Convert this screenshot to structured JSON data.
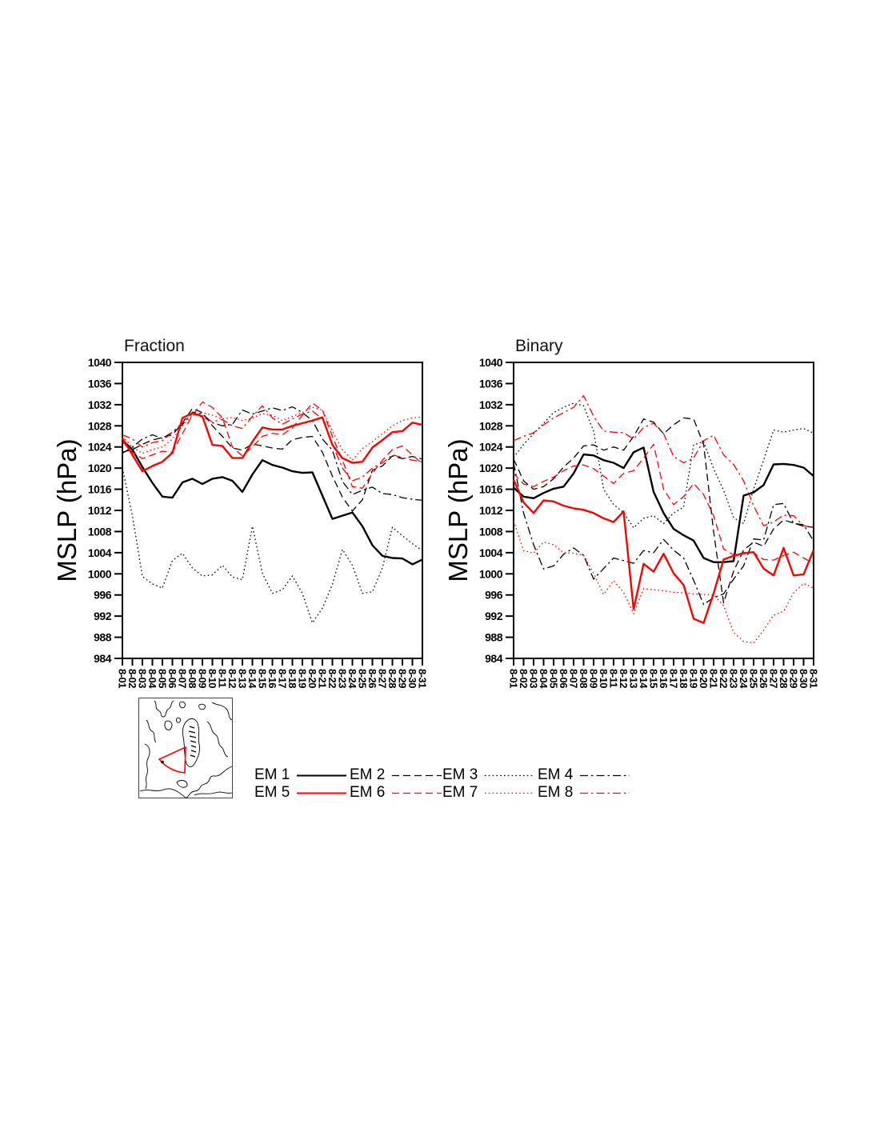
{
  "page": {
    "background": "#ffffff"
  },
  "axes": {
    "ylabel": "MSLP (hPa)",
    "ylim": [
      984,
      1040
    ],
    "ytick_step": 4
  },
  "chart_data": [
    {
      "type": "line",
      "title": "Fraction",
      "ylabel": "MSLP (hPa)",
      "ylim": [
        984,
        1040
      ],
      "yticks": [
        1040,
        1036,
        1032,
        1028,
        1024,
        1020,
        1016,
        1012,
        1008,
        1004,
        1000,
        996,
        992,
        988,
        984
      ],
      "x": [
        "8-01",
        "8-02",
        "8-03",
        "8-04",
        "8-05",
        "8-06",
        "8-07",
        "8-08",
        "8-09",
        "8-10",
        "8-11",
        "8-12",
        "8-13",
        "8-14",
        "8-15",
        "8-16",
        "8-17",
        "8-18",
        "8-19",
        "8-20",
        "8-21",
        "8-22",
        "8-23",
        "8-24",
        "8-25",
        "8-26",
        "8-27",
        "8-28",
        "8-29",
        "8-30",
        "8-31"
      ],
      "grid": false,
      "series": [
        {
          "name": "EM 1",
          "color": "#000000",
          "style": "solid",
          "width": 2.4,
          "values": [
            1025.3,
            1023.5,
            1020.2,
            1017.2,
            1014.6,
            1014.4,
            1017.3,
            1018,
            1017,
            1018,
            1018.3,
            1017.6,
            1015.5,
            1018.8,
            1021.5,
            1020.6,
            1020.1,
            1019.4,
            1019.1,
            1019.2,
            1014.8,
            1010.4,
            1011,
            1011.6,
            1009,
            1005.4,
            1003.4,
            1003,
            1002.9,
            1001.8,
            1002.7
          ]
        },
        {
          "name": "EM 2",
          "color": "#000000",
          "style": "dash",
          "width": 1.3,
          "values": [
            1023,
            1023.5,
            1024.5,
            1025.3,
            1025.8,
            1026.3,
            1028.5,
            1031.3,
            1030.5,
            1028,
            1026,
            1023.8,
            1023.4,
            1024.6,
            1024.2,
            1023.8,
            1023.6,
            1025.4,
            1025.8,
            1026,
            1023,
            1018.5,
            1014.5,
            1011.9,
            1014,
            1019.6,
            1020.4,
            1022.3,
            1021.8,
            1022.2,
            1021.7
          ]
        },
        {
          "name": "EM 3",
          "color": "#000000",
          "style": "dot",
          "width": 1.3,
          "values": [
            1020,
            1011,
            999.5,
            998.1,
            997.3,
            1002.5,
            1003.9,
            1001.1,
            999.6,
            999.8,
            1001.6,
            999.4,
            998.9,
            1009,
            1000.1,
            996.3,
            997,
            999.6,
            996.3,
            990.7,
            993.5,
            998,
            1004.6,
            1001.6,
            996.3,
            996.6,
            1001.1,
            1008.8,
            1007.2,
            1005.7,
            1004.4
          ]
        },
        {
          "name": "EM 4",
          "color": "#000000",
          "style": "dashdot",
          "width": 1.3,
          "values": [
            1022.8,
            1024,
            1025.5,
            1026.3,
            1025.6,
            1026.8,
            1028.2,
            1030.6,
            1030.2,
            1028.6,
            1028,
            1028.3,
            1031,
            1030.2,
            1030.8,
            1031.4,
            1030.9,
            1031.6,
            1030.5,
            1029,
            1025.5,
            1023.4,
            1017.5,
            1015,
            1015.8,
            1016.4,
            1015.2,
            1015,
            1014.4,
            1014.1,
            1013.9
          ]
        },
        {
          "name": "EM 5",
          "color": "#ff0000",
          "style": "solid",
          "width": 2.4,
          "values": [
            1025.7,
            1022.5,
            1019.4,
            1020.4,
            1021.2,
            1022.9,
            1029.5,
            1030.4,
            1029.8,
            1024.4,
            1024.2,
            1021.9,
            1021.9,
            1025,
            1027.7,
            1027.3,
            1027.3,
            1028,
            1028.5,
            1029,
            1029.6,
            1024.4,
            1021.9,
            1021,
            1021.2,
            1023.9,
            1025.3,
            1026.8,
            1027,
            1028.6,
            1028.2
          ]
        },
        {
          "name": "EM 6",
          "color": "#ff0000",
          "style": "dash",
          "width": 1.3,
          "values": [
            1025,
            1023,
            1021.8,
            1022.5,
            1023.2,
            1023,
            1026.5,
            1030,
            1032.5,
            1031.5,
            1029.5,
            1024,
            1022.3,
            1024,
            1026,
            1026.6,
            1026.3,
            1027.6,
            1030,
            1032.3,
            1031,
            1026,
            1021.5,
            1016.5,
            1016.2,
            1019,
            1021.5,
            1023.5,
            1024.2,
            1022.5,
            1020.8
          ]
        },
        {
          "name": "EM 7",
          "color": "#ff0000",
          "style": "dot",
          "width": 1.3,
          "values": [
            1026,
            1024,
            1022.8,
            1023.5,
            1024,
            1025.5,
            1028,
            1030,
            1030.5,
            1030,
            1029.3,
            1029.6,
            1029,
            1029.5,
            1030.3,
            1030,
            1029,
            1029.8,
            1030.5,
            1031.5,
            1031,
            1027,
            1023.5,
            1021.5,
            1023.7,
            1025,
            1026.5,
            1028,
            1029,
            1029.5,
            1029.7
          ]
        },
        {
          "name": "EM 8",
          "color": "#ff0000",
          "style": "dashdot",
          "width": 1.3,
          "values": [
            1026.3,
            1025.5,
            1024,
            1024.8,
            1025.2,
            1026.8,
            1028.6,
            1030.3,
            1029.6,
            1028.8,
            1029.2,
            1028,
            1027.5,
            1029.8,
            1031.8,
            1029.5,
            1028.3,
            1029.3,
            1030.2,
            1030.8,
            1029.3,
            1024.5,
            1020,
            1017.6,
            1018.3,
            1020,
            1021,
            1022.5,
            1022,
            1021.5,
            1021.2
          ]
        }
      ]
    },
    {
      "type": "line",
      "title": "Binary",
      "ylabel": "MSLP (hPa)",
      "ylim": [
        984,
        1040
      ],
      "yticks": [
        1040,
        1036,
        1032,
        1028,
        1024,
        1020,
        1016,
        1012,
        1008,
        1004,
        1000,
        996,
        992,
        988,
        984
      ],
      "x": [
        "8-01",
        "8-02",
        "8-03",
        "8-04",
        "8-05",
        "8-06",
        "8-07",
        "8-08",
        "8-09",
        "8-10",
        "8-11",
        "8-12",
        "8-13",
        "8-14",
        "8-15",
        "8-16",
        "8-17",
        "8-18",
        "8-19",
        "8-20",
        "8-21",
        "8-22",
        "8-23",
        "8-24",
        "8-25",
        "8-26",
        "8-27",
        "8-28",
        "8-29",
        "8-30",
        "8-31"
      ],
      "grid": false,
      "series": [
        {
          "name": "EM 1",
          "color": "#000000",
          "style": "solid",
          "width": 2.4,
          "values": [
            1016.3,
            1014.6,
            1014.3,
            1015.3,
            1016.1,
            1016.5,
            1019,
            1022.6,
            1022.4,
            1021.5,
            1021,
            1020,
            1023,
            1023.9,
            1015.5,
            1011.5,
            1008.5,
            1007.3,
            1006.3,
            1003,
            1002.2,
            1002.2,
            1002.4,
            1014.8,
            1015.4,
            1016.8,
            1020.7,
            1020.8,
            1020.6,
            1020.1,
            1018.5
          ]
        },
        {
          "name": "EM 2",
          "color": "#000000",
          "style": "dash",
          "width": 1.3,
          "values": [
            1021.7,
            1017.6,
            1016,
            1016.5,
            1018,
            1020.2,
            1021.9,
            1024.2,
            1024.4,
            1023.4,
            1024,
            1023.4,
            1026,
            1029.3,
            1028.7,
            1026.5,
            1028.2,
            1029.5,
            1029.3,
            1024.5,
            1008,
            994.5,
            1000.5,
            1004.5,
            1006,
            1005.2,
            1008.5,
            1010.2,
            1009.6,
            1009,
            1008.8
          ]
        },
        {
          "name": "EM 3",
          "color": "#000000",
          "style": "dot",
          "width": 1.3,
          "values": [
            1022,
            1024.5,
            1026.5,
            1028.5,
            1030.5,
            1031.5,
            1032.3,
            1031.8,
            1027,
            1016,
            1013.1,
            1011.6,
            1008.7,
            1010.5,
            1011,
            1009.5,
            1011.5,
            1012.6,
            1024.4,
            1025,
            1019.9,
            1015.8,
            1010.6,
            1009.5,
            1016,
            1021.5,
            1027.2,
            1026.8,
            1027.2,
            1027.5,
            1026.6
          ]
        },
        {
          "name": "EM 4",
          "color": "#000000",
          "style": "dashdot",
          "width": 1.3,
          "values": [
            1021,
            1011.5,
            1005.5,
            1000.9,
            1001.5,
            1003.7,
            1004.9,
            1003.5,
            999,
            1001,
            1003,
            1002.5,
            1002,
            1004.4,
            1004,
            1006.5,
            1004.5,
            1003,
            998.8,
            994.2,
            995.5,
            996.2,
            999,
            1001.5,
            1006.6,
            1006.4,
            1013.1,
            1013.3,
            1009.5,
            1009.3,
            1006.2
          ]
        },
        {
          "name": "EM 5",
          "color": "#ff0000",
          "style": "solid",
          "width": 2.4,
          "values": [
            1017.8,
            1013.5,
            1011.5,
            1013.9,
            1013.7,
            1012.9,
            1012.4,
            1012.1,
            1011.5,
            1010.5,
            1009.8,
            1011.8,
            993.3,
            1001.9,
            1000.4,
            1003.8,
            1000.1,
            997.9,
            991.5,
            990.7,
            996.3,
            1002.7,
            1003.4,
            1003.9,
            1004.1,
            1001,
            999.7,
            1004.9,
            999.7,
            999.9,
            1004.5
          ]
        },
        {
          "name": "EM 6",
          "color": "#ff0000",
          "style": "dash",
          "width": 1.3,
          "values": [
            1019,
            1017,
            1016.5,
            1017.5,
            1018.3,
            1019.5,
            1020.4,
            1020.6,
            1019.9,
            1018.5,
            1017.1,
            1019,
            1019.5,
            1021.9,
            1024.5,
            1016,
            1013.1,
            1014.6,
            1017.1,
            1015,
            1011,
            1004.7,
            1003.6,
            1004,
            1004,
            1002.7,
            1002.6,
            1003.5,
            1004.1,
            1003,
            1002
          ]
        },
        {
          "name": "EM 7",
          "color": "#ff0000",
          "style": "dot",
          "width": 1.3,
          "values": [
            1010,
            1004.4,
            1003.9,
            1006,
            1005.5,
            1004,
            1003.9,
            1003.5,
            1000.1,
            996.1,
            998.7,
            996.5,
            992.4,
            997.2,
            997,
            996.8,
            996.5,
            996.4,
            996.2,
            996.1,
            996,
            994,
            988.9,
            987.2,
            986.9,
            989.3,
            992.2,
            992.9,
            996.4,
            998.2,
            997.3
          ]
        },
        {
          "name": "EM 8",
          "color": "#ff0000",
          "style": "dashdot",
          "width": 1.3,
          "values": [
            1025.2,
            1026,
            1026.7,
            1028.2,
            1029.5,
            1030.5,
            1031.5,
            1033.7,
            1029.8,
            1027,
            1026.8,
            1026.7,
            1025.5,
            1027.7,
            1028.5,
            1026.5,
            1022.2,
            1021,
            1021.9,
            1025.2,
            1026.2,
            1022.5,
            1020.7,
            1017.6,
            1012.9,
            1009.1,
            1009.8,
            1011.1,
            1011,
            1009.1,
            1008.8
          ]
        }
      ]
    }
  ],
  "legend": {
    "items": [
      {
        "label": "EM 1",
        "color": "#000000",
        "style": "solid",
        "width": 2
      },
      {
        "label": "EM 2",
        "color": "#000000",
        "style": "dash",
        "width": 1.3
      },
      {
        "label": "EM 3",
        "color": "#000000",
        "style": "dot",
        "width": 1.3
      },
      {
        "label": "EM 4",
        "color": "#000000",
        "style": "dashdot",
        "width": 1.3
      },
      {
        "label": "EM 5",
        "color": "#ff0000",
        "style": "solid",
        "width": 2
      },
      {
        "label": "EM 6",
        "color": "#ff0000",
        "style": "dash",
        "width": 1.3
      },
      {
        "label": "EM 7",
        "color": "#ff0000",
        "style": "dot",
        "width": 1.3
      },
      {
        "label": "EM 8",
        "color": "#ff0000",
        "style": "dashdot",
        "width": 1.3
      }
    ]
  },
  "map_inset": {
    "coastline_color": "#000000",
    "region_outline_color": "#ff0000",
    "border_color": "#444444"
  }
}
